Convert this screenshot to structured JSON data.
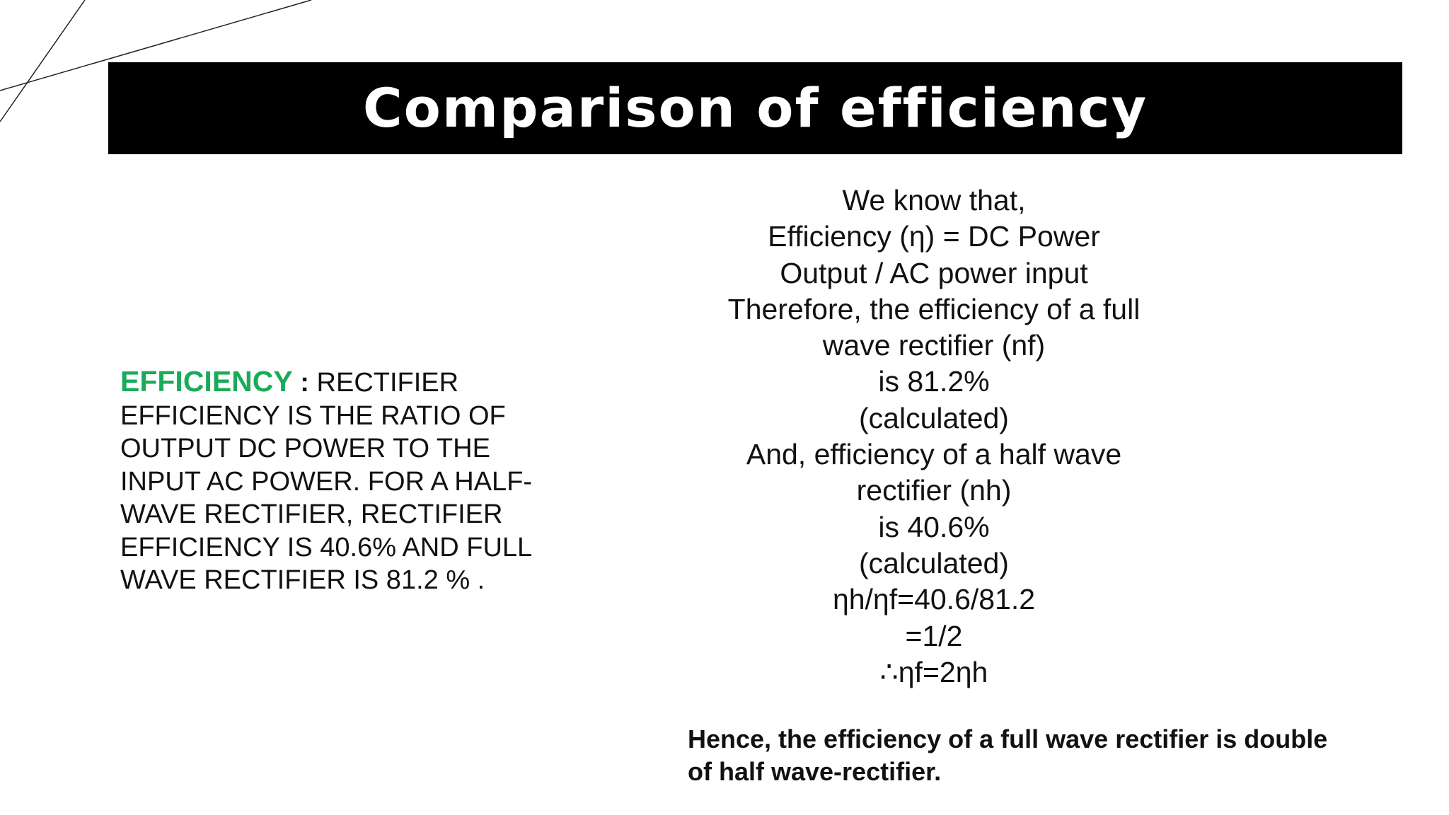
{
  "slide": {
    "title": "Comparison of efficiency",
    "definition": {
      "term": "EFFICIENCY",
      "separator": " : ",
      "lines": [
        "RECTIFIER",
        "EFFICIENCY IS THE RATIO OF",
        "OUTPUT DC POWER TO THE",
        "INPUT AC POWER. FOR A HALF-",
        "WAVE RECTIFIER, RECTIFIER",
        "EFFICIENCY IS 40.6% AND FULL",
        "WAVE RECTIFIER IS 81.2 % ."
      ],
      "term_color": "#1aab5a"
    },
    "derivation_lines": [
      "We know that,",
      "Efficiency (η) = DC Power",
      "Output / AC power input",
      "Therefore, the efficiency of a full",
      "wave rectifier (nf)",
      "is 81.2%",
      "(calculated)",
      "And, efficiency of a half wave",
      "rectifier (nh)",
      "is 40.6%",
      "(calculated)",
      "ηh/ηf=40.6/81.2",
      "=1/2",
      "∴ηf=2ηh"
    ],
    "conclusion_lines": [
      "Hence, the efficiency of a full wave rectifier is double",
      "of half wave-rectifier."
    ]
  }
}
